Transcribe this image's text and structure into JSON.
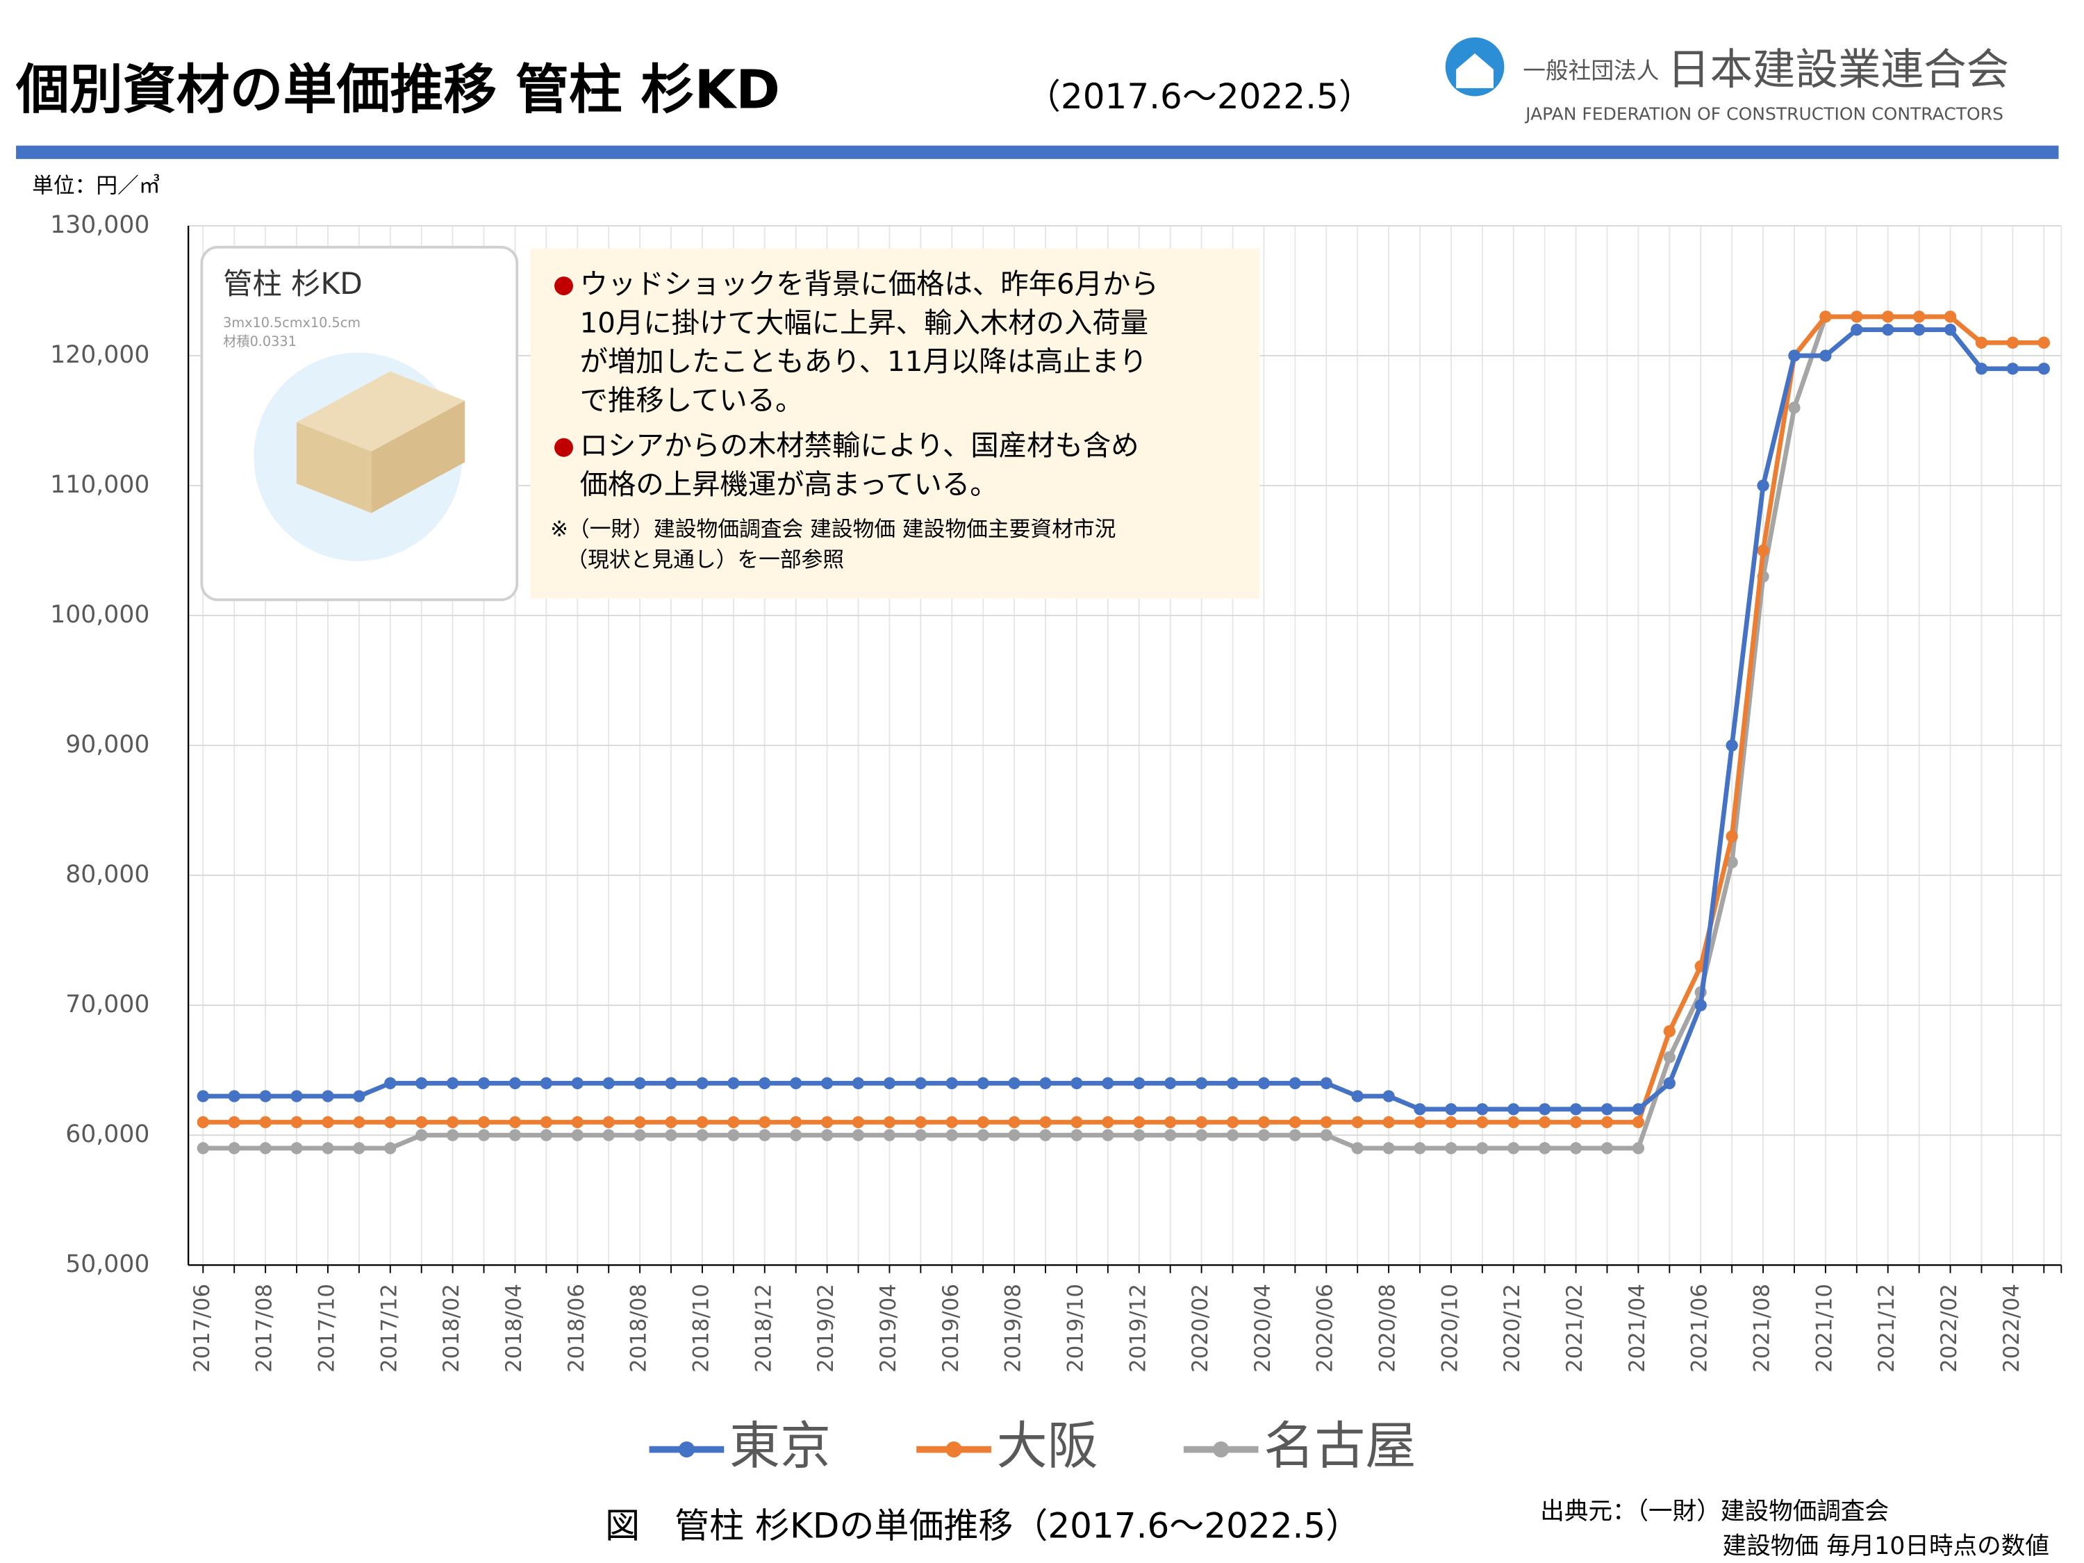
{
  "chart_data": {
    "type": "line",
    "title": "個別資材の単価推移 管柱 杉KD",
    "subtitle": "（2017.6～2022.5）",
    "organization": {
      "prefix": "一般社団法人",
      "name": "日本建設業連合会",
      "english": "JAPAN FEDERATION OF CONSTRUCTION CONTRACTORS"
    },
    "unit_label": "単位：円／㎥",
    "product": {
      "name": "管柱 杉KD",
      "size": "3mx10.5cmx10.5cm",
      "volume": "材積0.0331"
    },
    "notes": {
      "bullet1": [
        "ウッドショックを背景に価格は、昨年6月から",
        "10月に掛けて大幅に上昇、輸入木材の入荷量",
        "が増加したこともあり、11月以降は高止まり",
        "で推移している。"
      ],
      "bullet2": [
        "ロシアからの木材禁輸により、国産材も含め",
        "価格の上昇機運が高まっている。"
      ],
      "reference": [
        "※（一財）建設物価調査会 建設物価 建設物価主要資材市況",
        "（現状と見通し）を一部参照"
      ]
    },
    "caption": "図　管柱 杉KDの単価推移（2017.6～2022.5）",
    "source": [
      "出典元：（一財）建設物価調査会",
      "建設物価 毎月10日時点の数値"
    ],
    "categories": [
      "2017/06",
      null,
      "2017/08",
      null,
      "2017/10",
      null,
      "2017/12",
      null,
      "2018/02",
      null,
      "2018/04",
      null,
      "2018/06",
      null,
      "2018/08",
      null,
      "2018/10",
      null,
      "2018/12",
      null,
      "2019/02",
      null,
      "2019/04",
      null,
      "2019/06",
      null,
      "2019/08",
      null,
      "2019/10",
      null,
      "2019/12",
      null,
      "2020/02",
      null,
      "2020/04",
      null,
      "2020/06",
      null,
      "2020/08",
      null,
      "2020/10",
      null,
      "2020/12",
      null,
      "2021/02",
      null,
      "2021/04",
      null,
      "2021/06",
      null,
      "2021/08",
      null,
      "2021/10",
      null,
      "2021/12",
      null,
      "2022/02",
      null,
      "2022/04",
      null
    ],
    "series": [
      {
        "name": "東京",
        "color": "#4472c4",
        "values": [
          63000,
          63000,
          63000,
          63000,
          63000,
          63000,
          64000,
          64000,
          64000,
          64000,
          64000,
          64000,
          64000,
          64000,
          64000,
          64000,
          64000,
          64000,
          64000,
          64000,
          64000,
          64000,
          64000,
          64000,
          64000,
          64000,
          64000,
          64000,
          64000,
          64000,
          64000,
          64000,
          64000,
          64000,
          64000,
          64000,
          64000,
          63000,
          63000,
          62000,
          62000,
          62000,
          62000,
          62000,
          62000,
          62000,
          62000,
          64000,
          70000,
          90000,
          110000,
          120000,
          120000,
          122000,
          122000,
          122000,
          122000,
          119000,
          119000,
          119000
        ]
      },
      {
        "name": "大阪",
        "color": "#ed7d31",
        "values": [
          61000,
          61000,
          61000,
          61000,
          61000,
          61000,
          61000,
          61000,
          61000,
          61000,
          61000,
          61000,
          61000,
          61000,
          61000,
          61000,
          61000,
          61000,
          61000,
          61000,
          61000,
          61000,
          61000,
          61000,
          61000,
          61000,
          61000,
          61000,
          61000,
          61000,
          61000,
          61000,
          61000,
          61000,
          61000,
          61000,
          61000,
          61000,
          61000,
          61000,
          61000,
          61000,
          61000,
          61000,
          61000,
          61000,
          61000,
          68000,
          73000,
          83000,
          105000,
          120000,
          123000,
          123000,
          123000,
          123000,
          123000,
          121000,
          121000,
          121000
        ]
      },
      {
        "name": "名古屋",
        "color": "#a5a5a5",
        "values": [
          59000,
          59000,
          59000,
          59000,
          59000,
          59000,
          59000,
          60000,
          60000,
          60000,
          60000,
          60000,
          60000,
          60000,
          60000,
          60000,
          60000,
          60000,
          60000,
          60000,
          60000,
          60000,
          60000,
          60000,
          60000,
          60000,
          60000,
          60000,
          60000,
          60000,
          60000,
          60000,
          60000,
          60000,
          60000,
          60000,
          60000,
          59000,
          59000,
          59000,
          59000,
          59000,
          59000,
          59000,
          59000,
          59000,
          59000,
          66000,
          71000,
          81000,
          103000,
          116000,
          123000,
          123000,
          123000,
          123000,
          123000,
          121000,
          121000,
          121000
        ]
      }
    ],
    "ylim": [
      50000,
      130000
    ],
    "yticks": [
      {
        "value": 50000,
        "label": "50,000"
      },
      {
        "value": 60000,
        "label": "60,000"
      },
      {
        "value": 70000,
        "label": "70,000"
      },
      {
        "value": 80000,
        "label": "80,000"
      },
      {
        "value": 90000,
        "label": "90,000"
      },
      {
        "value": 100000,
        "label": "100,000"
      },
      {
        "value": 110000,
        "label": "110,000"
      },
      {
        "value": 120000,
        "label": "120,000"
      },
      {
        "value": 130000,
        "label": "130,000"
      }
    ],
    "grid": true,
    "legend": "bottom"
  }
}
